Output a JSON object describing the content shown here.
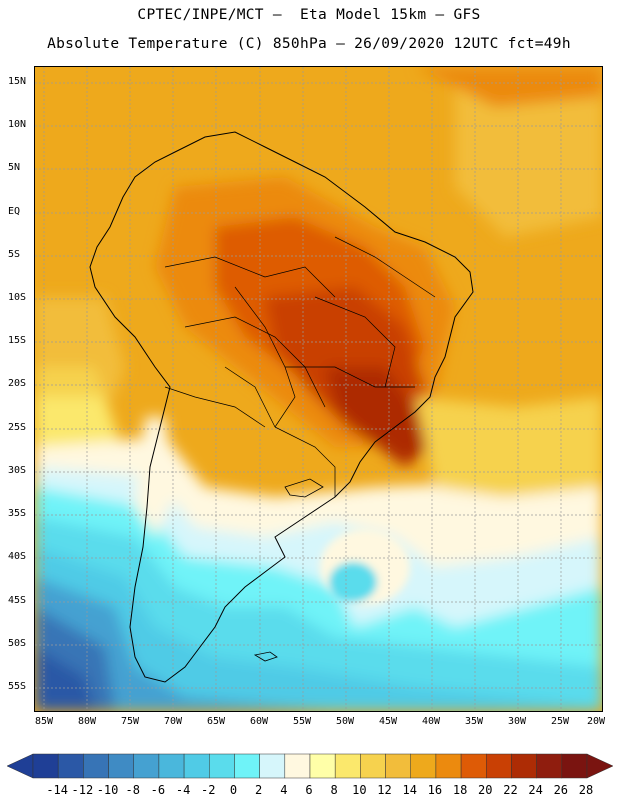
{
  "header": {
    "title_line1": "CPTEC/INPE/MCT –  Eta Model 15km – GFS",
    "title_line2": "Absolute Temperature (C) 850hPa – 26/09/2020 12UTC fct=49h"
  },
  "map": {
    "lat_labels": [
      "15N",
      "10N",
      "5N",
      "EQ",
      "5S",
      "10S",
      "15S",
      "20S",
      "25S",
      "30S",
      "35S",
      "40S",
      "45S",
      "50S",
      "55S"
    ],
    "lon_labels": [
      "85W",
      "80W",
      "75W",
      "70W",
      "65W",
      "60W",
      "55W",
      "50W",
      "45W",
      "40W",
      "35W",
      "30W",
      "25W",
      "20W"
    ]
  },
  "legend": {
    "labels": [
      "-14",
      "-12",
      "-10",
      "-8",
      "-6",
      "-4",
      "-2",
      "0",
      "2",
      "4",
      "6",
      "8",
      "10",
      "12",
      "14",
      "16",
      "18",
      "20",
      "22",
      "24",
      "26",
      "28"
    ],
    "colors": [
      "#1f3f96",
      "#2b58a6",
      "#3774b6",
      "#3f8bc4",
      "#45a1d1",
      "#4ab7dc",
      "#50cbe6",
      "#5adcec",
      "#6ff3f8",
      "#d6f6fb",
      "#fff8e0",
      "#ffffa8",
      "#fbe86c",
      "#f6d24e",
      "#f2bd3b",
      "#eea91c",
      "#ec8a0e",
      "#de5b06",
      "#c94004",
      "#ad2c05",
      "#8f1d0e",
      "#7a1410"
    ]
  },
  "colors": {
    "land_outline": "#000000",
    "grid": "#9a9a9a"
  }
}
